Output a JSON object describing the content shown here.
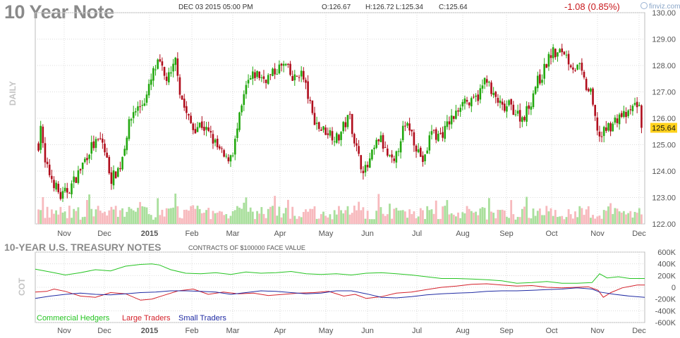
{
  "header": {
    "title": "10 Year Note",
    "datetime": "DEC 03 2015 05:00 PM",
    "open": "O:126.67",
    "high": "H:126.72",
    "low": "L:125.34",
    "close": "C:125.64",
    "change": "-1.08 (0.85%)",
    "brand": "finviz.com",
    "daily_label": "DAILY"
  },
  "cot_header": {
    "title": "10-YEAR U.S. TREASURY NOTES",
    "note": "CONTRACTS OF $100000 FACE VALUE",
    "side_label": "COT"
  },
  "colors": {
    "up": "#22a80f",
    "down": "#b00d1c",
    "vol_up": "#a9df9c",
    "vol_down": "#f7b9bd",
    "commercial": "#25c421",
    "large": "#d4202a",
    "small": "#1f2aa3",
    "price_tag": "#ffd21c"
  },
  "chart_data": [
    {
      "type": "candlestick",
      "title": "10 Year Note",
      "last_price": "125.64",
      "y_ticks": [
        "122.00",
        "123.00",
        "124.00",
        "125.00",
        "126.00",
        "127.00",
        "128.00",
        "129.00",
        "130.00"
      ],
      "ylim": [
        122,
        130
      ],
      "x_ticks": [
        "Nov",
        "Dec",
        "2015",
        "Feb",
        "Mar",
        "Apr",
        "May",
        "Jun",
        "Jul",
        "Aug",
        "Sep",
        "Oct",
        "Nov",
        "Dec"
      ],
      "anchors": [
        [
          0,
          125.0
        ],
        [
          3,
          125.8
        ],
        [
          8,
          124.3
        ],
        [
          20,
          123.6
        ],
        [
          30,
          123.0
        ],
        [
          43,
          123.4
        ],
        [
          55,
          124.0
        ],
        [
          70,
          124.9
        ],
        [
          85,
          125.2
        ],
        [
          98,
          123.7
        ],
        [
          110,
          124.2
        ],
        [
          120,
          125.6
        ],
        [
          128,
          126.3
        ],
        [
          135,
          126.4
        ],
        [
          145,
          126.8
        ],
        [
          155,
          127.8
        ],
        [
          162,
          128.1
        ],
        [
          170,
          127.5
        ],
        [
          178,
          127.6
        ],
        [
          185,
          128.3
        ],
        [
          190,
          127.0
        ],
        [
          198,
          126.2
        ],
        [
          208,
          125.6
        ],
        [
          218,
          125.8
        ],
        [
          232,
          125.3
        ],
        [
          240,
          124.9
        ],
        [
          252,
          124.4
        ],
        [
          262,
          124.8
        ],
        [
          270,
          126.0
        ],
        [
          280,
          127.3
        ],
        [
          292,
          127.7
        ],
        [
          302,
          127.5
        ],
        [
          312,
          127.6
        ],
        [
          322,
          127.9
        ],
        [
          332,
          128.0
        ],
        [
          342,
          127.4
        ],
        [
          352,
          127.8
        ],
        [
          360,
          127.1
        ],
        [
          368,
          126.1
        ],
        [
          378,
          125.6
        ],
        [
          390,
          125.5
        ],
        [
          402,
          125.2
        ],
        [
          410,
          125.7
        ],
        [
          418,
          126.1
        ],
        [
          425,
          125.1
        ],
        [
          432,
          124.3
        ],
        [
          440,
          124.0
        ],
        [
          448,
          124.6
        ],
        [
          458,
          125.3
        ],
        [
          468,
          124.6
        ],
        [
          478,
          124.2
        ],
        [
          488,
          125.5
        ],
        [
          498,
          125.7
        ],
        [
          508,
          124.9
        ],
        [
          518,
          124.3
        ],
        [
          528,
          125.6
        ],
        [
          535,
          125.3
        ],
        [
          545,
          125.5
        ],
        [
          552,
          125.9
        ],
        [
          560,
          126.1
        ],
        [
          570,
          126.8
        ],
        [
          580,
          126.5
        ],
        [
          592,
          126.9
        ],
        [
          602,
          127.6
        ],
        [
          608,
          126.9
        ],
        [
          616,
          126.7
        ],
        [
          624,
          126.3
        ],
        [
          633,
          126.5
        ],
        [
          642,
          126.2
        ],
        [
          650,
          126.0
        ],
        [
          660,
          126.5
        ],
        [
          668,
          127.3
        ],
        [
          676,
          127.6
        ],
        [
          684,
          128.2
        ],
        [
          690,
          128.5
        ],
        [
          697,
          128.4
        ],
        [
          705,
          128.6
        ],
        [
          712,
          128.2
        ],
        [
          720,
          127.9
        ],
        [
          727,
          127.9
        ],
        [
          735,
          127.2
        ],
        [
          742,
          126.9
        ],
        [
          748,
          125.9
        ],
        [
          755,
          125.2
        ],
        [
          762,
          125.6
        ],
        [
          772,
          125.8
        ],
        [
          780,
          126.1
        ],
        [
          792,
          126.1
        ],
        [
          800,
          126.5
        ],
        [
          806,
          126.6
        ],
        [
          810,
          125.64
        ]
      ],
      "n_candles": 274
    },
    {
      "type": "line",
      "title": "10-YEAR U.S. TREASURY NOTES",
      "y_ticks": [
        "600K",
        "400K",
        "200K",
        "0",
        "-200K",
        "-400K",
        "-600K"
      ],
      "ylim": [
        -600,
        600
      ],
      "y_unit": "K contracts",
      "x_ticks": [
        "Nov",
        "Dec",
        "2015",
        "Feb",
        "Mar",
        "Apr",
        "May",
        "Jun",
        "Jul",
        "Aug",
        "Sep",
        "Oct",
        "Nov",
        "Dec"
      ],
      "series": [
        {
          "name": "Commercial Hedgers",
          "color_key": "commercial",
          "values": [
            [
              0,
              310
            ],
            [
              20,
              260
            ],
            [
              40,
              210
            ],
            [
              60,
              250
            ],
            [
              80,
              300
            ],
            [
              100,
              280
            ],
            [
              120,
              360
            ],
            [
              140,
              390
            ],
            [
              155,
              400
            ],
            [
              165,
              380
            ],
            [
              180,
              300
            ],
            [
              200,
              240
            ],
            [
              220,
              230
            ],
            [
              240,
              250
            ],
            [
              260,
              220
            ],
            [
              280,
              260
            ],
            [
              300,
              240
            ],
            [
              320,
              250
            ],
            [
              340,
              270
            ],
            [
              360,
              230
            ],
            [
              380,
              220
            ],
            [
              400,
              230
            ],
            [
              420,
              210
            ],
            [
              440,
              240
            ],
            [
              460,
              250
            ],
            [
              480,
              230
            ],
            [
              500,
              210
            ],
            [
              520,
              180
            ],
            [
              540,
              150
            ],
            [
              560,
              150
            ],
            [
              580,
              140
            ],
            [
              600,
              130
            ],
            [
              620,
              110
            ],
            [
              640,
              70
            ],
            [
              660,
              80
            ],
            [
              680,
              100
            ],
            [
              700,
              70
            ],
            [
              720,
              70
            ],
            [
              740,
              80
            ],
            [
              750,
              230
            ],
            [
              760,
              160
            ],
            [
              775,
              180
            ],
            [
              790,
              150
            ],
            [
              810,
              150
            ]
          ]
        },
        {
          "name": "Large Traders",
          "color_key": "large",
          "values": [
            [
              0,
              -80
            ],
            [
              15,
              -70
            ],
            [
              25,
              -30
            ],
            [
              40,
              -70
            ],
            [
              60,
              -150
            ],
            [
              80,
              -170
            ],
            [
              100,
              -90
            ],
            [
              120,
              -110
            ],
            [
              140,
              -220
            ],
            [
              155,
              -200
            ],
            [
              170,
              -140
            ],
            [
              190,
              -60
            ],
            [
              210,
              -30
            ],
            [
              230,
              -120
            ],
            [
              250,
              -80
            ],
            [
              270,
              -110
            ],
            [
              290,
              -100
            ],
            [
              310,
              -140
            ],
            [
              330,
              -120
            ],
            [
              350,
              -100
            ],
            [
              370,
              -90
            ],
            [
              390,
              -70
            ],
            [
              410,
              -150
            ],
            [
              425,
              -120
            ],
            [
              440,
              -190
            ],
            [
              460,
              -160
            ],
            [
              480,
              -100
            ],
            [
              500,
              -80
            ],
            [
              520,
              -40
            ],
            [
              540,
              0
            ],
            [
              560,
              20
            ],
            [
              580,
              50
            ],
            [
              600,
              60
            ],
            [
              620,
              40
            ],
            [
              640,
              20
            ],
            [
              660,
              30
            ],
            [
              680,
              0
            ],
            [
              700,
              -10
            ],
            [
              720,
              0
            ],
            [
              735,
              10
            ],
            [
              748,
              -50
            ],
            [
              755,
              -170
            ],
            [
              765,
              -90
            ],
            [
              780,
              -10
            ],
            [
              800,
              40
            ],
            [
              810,
              40
            ]
          ]
        },
        {
          "name": "Small Traders",
          "color_key": "small",
          "values": [
            [
              0,
              -190
            ],
            [
              20,
              -150
            ],
            [
              40,
              -120
            ],
            [
              60,
              -100
            ],
            [
              80,
              -120
            ],
            [
              100,
              -130
            ],
            [
              120,
              -110
            ],
            [
              140,
              -90
            ],
            [
              160,
              -80
            ],
            [
              180,
              -60
            ],
            [
              200,
              -60
            ],
            [
              220,
              -70
            ],
            [
              240,
              -80
            ],
            [
              260,
              -120
            ],
            [
              280,
              -90
            ],
            [
              300,
              -60
            ],
            [
              320,
              -70
            ],
            [
              340,
              -90
            ],
            [
              360,
              -110
            ],
            [
              380,
              -100
            ],
            [
              400,
              -60
            ],
            [
              420,
              -60
            ],
            [
              440,
              -110
            ],
            [
              460,
              -170
            ],
            [
              480,
              -180
            ],
            [
              500,
              -160
            ],
            [
              520,
              -130
            ],
            [
              540,
              -110
            ],
            [
              560,
              -100
            ],
            [
              580,
              -90
            ],
            [
              600,
              -70
            ],
            [
              620,
              -60
            ],
            [
              640,
              -60
            ],
            [
              660,
              -50
            ],
            [
              680,
              -40
            ],
            [
              700,
              -30
            ],
            [
              720,
              -10
            ],
            [
              740,
              -30
            ],
            [
              750,
              -80
            ],
            [
              770,
              -120
            ],
            [
              790,
              -150
            ],
            [
              810,
              -170
            ]
          ]
        }
      ]
    }
  ]
}
